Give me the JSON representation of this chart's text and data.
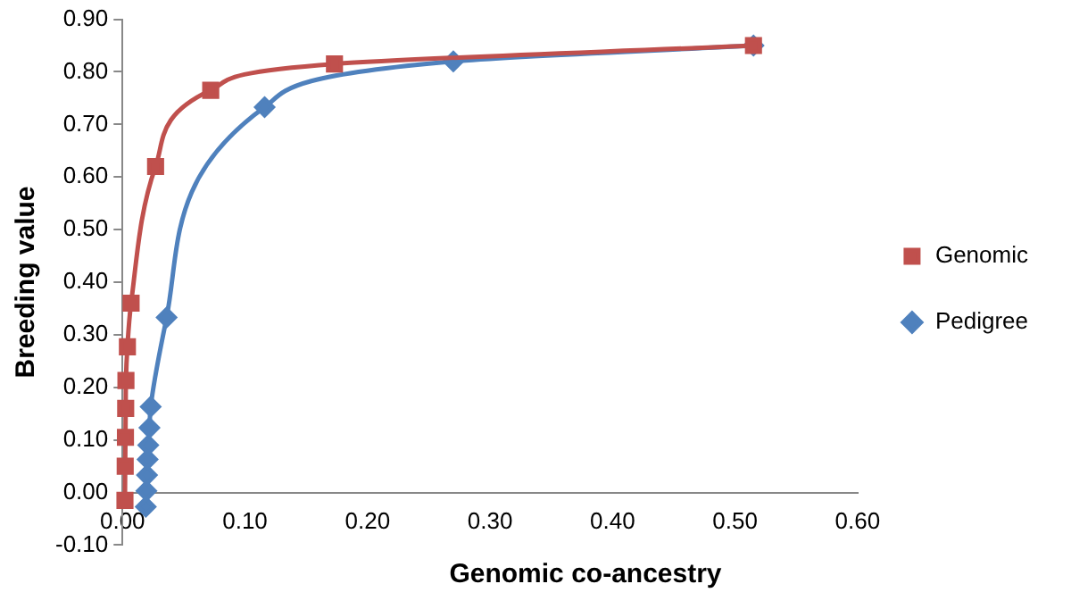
{
  "chart_data": {
    "type": "line",
    "xlabel": "Genomic co-ancestry",
    "ylabel": "Breeding value",
    "xlim": [
      0,
      0.6
    ],
    "xticks": [
      {
        "value": 0,
        "label": "0.00"
      },
      {
        "value": 0.1,
        "label": "0.10"
      },
      {
        "value": 0.2,
        "label": "0.20"
      },
      {
        "value": 0.3,
        "label": "0.30"
      },
      {
        "value": 0.4,
        "label": "0.40"
      },
      {
        "value": 0.5,
        "label": "0.50"
      },
      {
        "value": 0.6,
        "label": "0.60"
      }
    ],
    "ylim": [
      -0.1,
      0.9
    ],
    "yticks": [
      {
        "value": -0.1,
        "label": "-0.10"
      },
      {
        "value": 0,
        "label": "0.00"
      },
      {
        "value": 0.1,
        "label": "0.10"
      },
      {
        "value": 0.2,
        "label": "0.20"
      },
      {
        "value": 0.3,
        "label": "0.30"
      },
      {
        "value": 0.4,
        "label": "0.40"
      },
      {
        "value": 0.5,
        "label": "0.50"
      },
      {
        "value": 0.6,
        "label": "0.60"
      },
      {
        "value": 0.7,
        "label": "0.70"
      },
      {
        "value": 0.8,
        "label": "0.80"
      },
      {
        "value": 0.9,
        "label": "0.90"
      }
    ],
    "grid": false,
    "legend": "right",
    "series": [
      {
        "name": "Genomic",
        "color": "#c0504d",
        "marker": "square",
        "x": [
          0.002,
          0.0022,
          0.0024,
          0.0026,
          0.0028,
          0.004,
          0.007,
          0.027,
          0.072,
          0.173,
          0.515
        ],
        "values": [
          -0.015,
          0.05,
          0.105,
          0.16,
          0.213,
          0.277,
          0.36,
          0.62,
          0.765,
          0.815,
          0.85
        ]
      },
      {
        "name": "Pedigree",
        "color": "#4f81bd",
        "marker": "diamond",
        "x": [
          0.019,
          0.0195,
          0.02,
          0.0205,
          0.021,
          0.022,
          0.023,
          0.036,
          0.116,
          0.27,
          0.515
        ],
        "values": [
          -0.027,
          0.003,
          0.033,
          0.063,
          0.09,
          0.123,
          0.163,
          0.333,
          0.733,
          0.82,
          0.85
        ]
      }
    ]
  }
}
